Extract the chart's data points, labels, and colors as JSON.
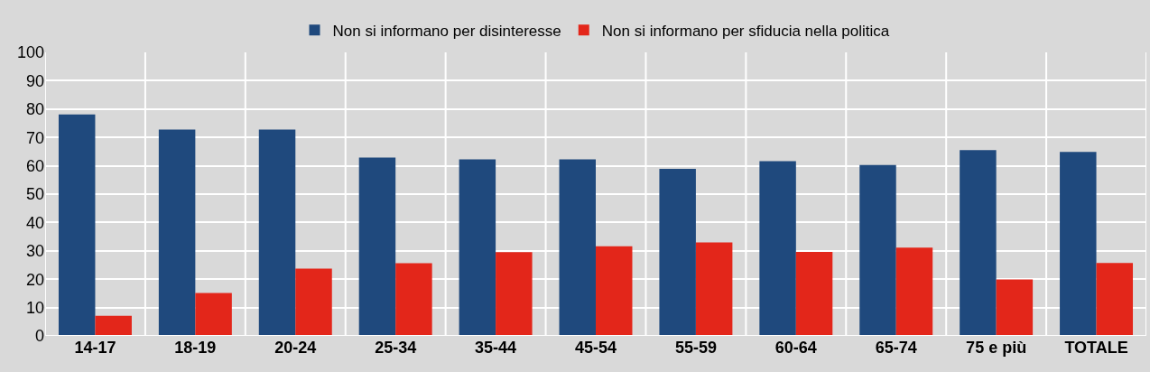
{
  "chart_data": {
    "type": "bar",
    "categories": [
      "14-17",
      "18-19",
      "20-24",
      "25-34",
      "35-44",
      "45-54",
      "55-59",
      "60-64",
      "65-74",
      "75 e più",
      "TOTALE"
    ],
    "series": [
      {
        "name": "Non si informano per disinteresse",
        "color": "#1f497d",
        "values": [
          78.1,
          72.8,
          72.8,
          62.9,
          62.3,
          62.3,
          58.9,
          61.6,
          60.3,
          65.5,
          64.9
        ]
      },
      {
        "name": "Non si informano per sfiducia nella politica",
        "color": "#e3261a",
        "values": [
          7.1,
          15.1,
          23.7,
          25.6,
          29.5,
          31.6,
          33.0,
          29.6,
          31.1,
          19.9,
          25.7
        ]
      }
    ],
    "ylim": [
      0,
      100
    ],
    "yticks": [
      0,
      10,
      20,
      30,
      40,
      50,
      60,
      70,
      80,
      90,
      100
    ],
    "grid": true,
    "legend": "top"
  }
}
